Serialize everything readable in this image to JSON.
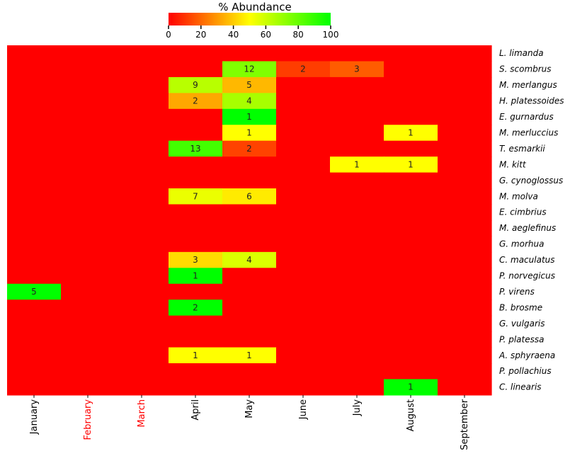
{
  "chart_data": {
    "type": "heatmap",
    "colorbar": {
      "title": "% Abundance",
      "min": 0,
      "max": 100,
      "ticks": [
        0,
        20,
        40,
        60,
        80,
        100
      ],
      "colors": [
        "#ff0000",
        "#ffff00",
        "#00ff00"
      ]
    },
    "columns": [
      {
        "label": "January",
        "color": "#000000"
      },
      {
        "label": "February",
        "color": "#ff0000"
      },
      {
        "label": "March",
        "color": "#ff0000"
      },
      {
        "label": "April",
        "color": "#000000"
      },
      {
        "label": "May",
        "color": "#000000"
      },
      {
        "label": "June",
        "color": "#000000"
      },
      {
        "label": "July",
        "color": "#000000"
      },
      {
        "label": "August",
        "color": "#000000"
      },
      {
        "label": "September",
        "color": "#000000"
      }
    ],
    "rows": [
      "L. limanda",
      "S. scombrus",
      "M. merlangus",
      "H. platessoides",
      "E. gurnardus",
      "M. merluccius",
      "T. esmarkii",
      "M. kitt",
      "G. cynoglossus",
      "M. molva",
      "E. cimbrius",
      "M. aeglefinus",
      "G. morhua",
      "C. maculatus",
      "P. norvegicus",
      "P. virens",
      "B. brosme",
      "G. vulgaris",
      "P. platessa",
      "A. sphyraena",
      "P. pollachius",
      "C. linearis"
    ],
    "cells": [
      {
        "row": 1,
        "col": 4,
        "value": 75,
        "label": "12"
      },
      {
        "row": 1,
        "col": 5,
        "value": 12,
        "label": "2"
      },
      {
        "row": 1,
        "col": 6,
        "value": 18,
        "label": "3"
      },
      {
        "row": 2,
        "col": 3,
        "value": 64,
        "label": "9"
      },
      {
        "row": 2,
        "col": 4,
        "value": 36,
        "label": "5"
      },
      {
        "row": 3,
        "col": 3,
        "value": 33,
        "label": "2"
      },
      {
        "row": 3,
        "col": 4,
        "value": 67,
        "label": "4"
      },
      {
        "row": 4,
        "col": 4,
        "value": 100,
        "label": "1"
      },
      {
        "row": 5,
        "col": 4,
        "value": 50,
        "label": "1"
      },
      {
        "row": 5,
        "col": 7,
        "value": 50,
        "label": "1"
      },
      {
        "row": 6,
        "col": 3,
        "value": 87,
        "label": "13"
      },
      {
        "row": 6,
        "col": 4,
        "value": 13,
        "label": "2"
      },
      {
        "row": 7,
        "col": 6,
        "value": 50,
        "label": "1"
      },
      {
        "row": 7,
        "col": 7,
        "value": 50,
        "label": "1"
      },
      {
        "row": 9,
        "col": 3,
        "value": 54,
        "label": "7"
      },
      {
        "row": 9,
        "col": 4,
        "value": 46,
        "label": "6"
      },
      {
        "row": 13,
        "col": 3,
        "value": 43,
        "label": "3"
      },
      {
        "row": 13,
        "col": 4,
        "value": 57,
        "label": "4"
      },
      {
        "row": 14,
        "col": 3,
        "value": 100,
        "label": "1"
      },
      {
        "row": 15,
        "col": 0,
        "value": 100,
        "label": "5"
      },
      {
        "row": 16,
        "col": 3,
        "value": 100,
        "label": "2"
      },
      {
        "row": 19,
        "col": 3,
        "value": 50,
        "label": "1"
      },
      {
        "row": 19,
        "col": 4,
        "value": 50,
        "label": "1"
      },
      {
        "row": 21,
        "col": 7,
        "value": 100,
        "label": "1"
      }
    ],
    "background_value": 0
  }
}
